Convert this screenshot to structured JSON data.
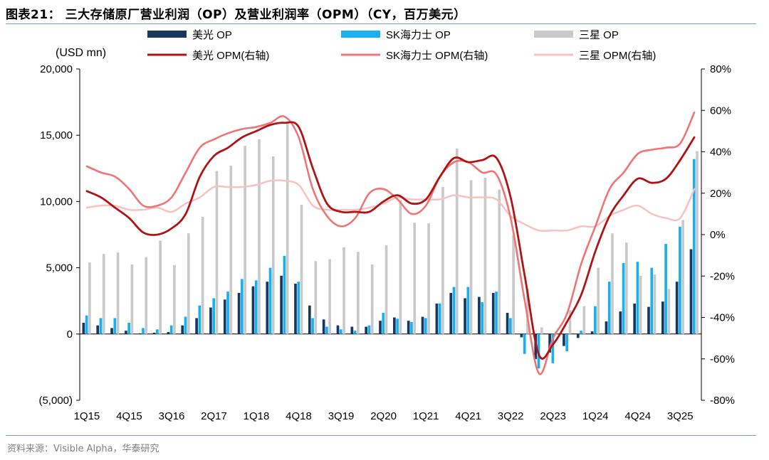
{
  "title": "图表21：  三大存储原厂营业利润（OP）及营业利润率（OPM）（CY，百万美元）",
  "source": "资料来源：Visible Alpha，华泰研究",
  "colors": {
    "micron_op": "#17375e",
    "hynix_op": "#1ab0f0",
    "samsung_op": "#c9c9c9",
    "micron_opm": "#b01313",
    "hynix_opm": "#f07474",
    "samsung_opm": "#f8c2c2",
    "rule": "#7f9cc0"
  },
  "chart_data": {
    "type": "bar+line",
    "y_left_unit": "(USD mn)",
    "y_left_ticks": [
      "(5,000)",
      "0",
      "5,000",
      "10,000",
      "15,000",
      "20,000"
    ],
    "ylim_left": [
      -5000,
      20000
    ],
    "y_right_ticks": [
      "-80%",
      "-60%",
      "-40%",
      "-20%",
      "0%",
      "20%",
      "40%",
      "60%",
      "80%"
    ],
    "ylim_right": [
      -0.8,
      0.8
    ],
    "x_tick_labels": [
      "1Q15",
      "4Q15",
      "3Q16",
      "2Q17",
      "1Q18",
      "4Q18",
      "3Q19",
      "2Q20",
      "1Q21",
      "4Q21",
      "3Q22",
      "2Q23",
      "1Q24",
      "4Q24",
      "3Q25"
    ],
    "x_tick_every": 3,
    "categories": [
      "1Q15",
      "2Q15",
      "3Q15",
      "4Q15",
      "1Q16",
      "2Q16",
      "3Q16",
      "4Q16",
      "1Q17",
      "2Q17",
      "3Q17",
      "4Q17",
      "1Q18",
      "2Q18",
      "3Q18",
      "4Q18",
      "1Q19",
      "2Q19",
      "3Q19",
      "4Q19",
      "1Q20",
      "2Q20",
      "3Q20",
      "4Q20",
      "1Q21",
      "2Q21",
      "3Q21",
      "4Q21",
      "1Q22",
      "2Q22",
      "3Q22",
      "4Q22",
      "1Q23",
      "2Q23",
      "3Q23",
      "4Q23",
      "1Q24",
      "2Q24",
      "3Q24",
      "4Q24",
      "1Q25",
      "2Q25",
      "3Q25",
      "4Q25"
    ],
    "legend": [
      {
        "key": "micron_op",
        "label": "美光 OP",
        "kind": "bar"
      },
      {
        "key": "hynix_op",
        "label": "SK海力士 OP",
        "kind": "bar"
      },
      {
        "key": "samsung_op",
        "label": "三星 OP",
        "kind": "bar"
      },
      {
        "key": "micron_opm",
        "label": "美光 OPM(右轴)",
        "kind": "line"
      },
      {
        "key": "hynix_opm",
        "label": "SK海力士 OPM(右轴)",
        "kind": "line"
      },
      {
        "key": "samsung_opm",
        "label": "三星 OPM(右轴)",
        "kind": "line"
      }
    ],
    "bar_series": [
      {
        "key": "micron_op",
        "name": "美光 OP",
        "values": [
          850,
          650,
          450,
          250,
          50,
          100,
          150,
          650,
          1200,
          2000,
          2600,
          3100,
          3600,
          3950,
          4400,
          3800,
          2150,
          1100,
          650,
          550,
          550,
          1000,
          1250,
          1000,
          1300,
          2300,
          3100,
          2700,
          2800,
          3100,
          1600,
          -250,
          -1900,
          -1400,
          -900,
          -300,
          200,
          950,
          1700,
          2300,
          2050,
          2450,
          3950,
          6400
        ]
      },
      {
        "key": "hynix_op",
        "name": "SK海力士 OP",
        "values": [
          1400,
          1200,
          1200,
          850,
          450,
          350,
          650,
          1300,
          2150,
          2700,
          3200,
          4150,
          4050,
          5000,
          5900,
          3950,
          1200,
          550,
          350,
          250,
          650,
          1600,
          1150,
          900,
          1200,
          2300,
          3550,
          3550,
          2400,
          3200,
          1200,
          -1500,
          -2600,
          -2200,
          -1300,
          250,
          2100,
          3950,
          5350,
          5450,
          5000,
          6800,
          8100,
          13200
        ]
      },
      {
        "key": "samsung_op",
        "name": "三星 OP",
        "values": [
          5400,
          6050,
          6150,
          5250,
          5800,
          7050,
          5200,
          7600,
          8850,
          12300,
          12700,
          14200,
          14700,
          13400,
          15900,
          9750,
          5500,
          5650,
          6550,
          6200,
          5250,
          6700,
          10100,
          8400,
          8350,
          11100,
          14000,
          11600,
          11800,
          10900,
          7450,
          3450,
          500,
          200,
          1800,
          2100,
          5000,
          7600,
          6900,
          4400,
          4500,
          3400,
          8600,
          13800
        ]
      }
    ],
    "line_series": [
      {
        "key": "hynix_opm",
        "name": "SK海力士 OPM(右轴)",
        "values": [
          0.33,
          0.3,
          0.28,
          0.22,
          0.14,
          0.14,
          0.18,
          0.3,
          0.42,
          0.46,
          0.49,
          0.51,
          0.52,
          0.54,
          0.57,
          0.47,
          0.22,
          0.09,
          0.04,
          0.08,
          0.2,
          0.22,
          0.17,
          0.1,
          0.14,
          0.28,
          0.35,
          0.35,
          0.3,
          0.29,
          0.08,
          -0.32,
          -0.67,
          -0.5,
          -0.38,
          -0.14,
          0.04,
          0.22,
          0.3,
          0.39,
          0.41,
          0.42,
          0.44,
          0.59
        ]
      },
      {
        "key": "micron_opm",
        "name": "美光 OPM(右轴)",
        "values": [
          0.21,
          0.18,
          0.13,
          0.08,
          0.01,
          0.0,
          0.03,
          0.1,
          0.28,
          0.38,
          0.42,
          0.47,
          0.5,
          0.53,
          0.54,
          0.52,
          0.32,
          0.15,
          0.11,
          0.11,
          0.11,
          0.16,
          0.19,
          0.15,
          0.17,
          0.28,
          0.37,
          0.35,
          0.36,
          0.37,
          0.18,
          -0.2,
          -0.58,
          -0.53,
          -0.42,
          -0.29,
          -0.08,
          0.09,
          0.19,
          0.27,
          0.25,
          0.27,
          0.36,
          0.47
        ]
      },
      {
        "key": "samsung_opm",
        "name": "三星 OPM(右轴)",
        "values": [
          0.13,
          0.14,
          0.14,
          0.12,
          0.12,
          0.13,
          0.11,
          0.15,
          0.18,
          0.23,
          0.23,
          0.23,
          0.24,
          0.26,
          0.26,
          0.24,
          0.14,
          0.12,
          0.12,
          0.12,
          0.13,
          0.15,
          0.18,
          0.17,
          0.17,
          0.17,
          0.19,
          0.18,
          0.18,
          0.17,
          0.09,
          0.05,
          0.02,
          0.02,
          0.02,
          0.04,
          0.04,
          0.09,
          0.12,
          0.14,
          0.1,
          0.08,
          0.08,
          0.22
        ]
      }
    ]
  }
}
